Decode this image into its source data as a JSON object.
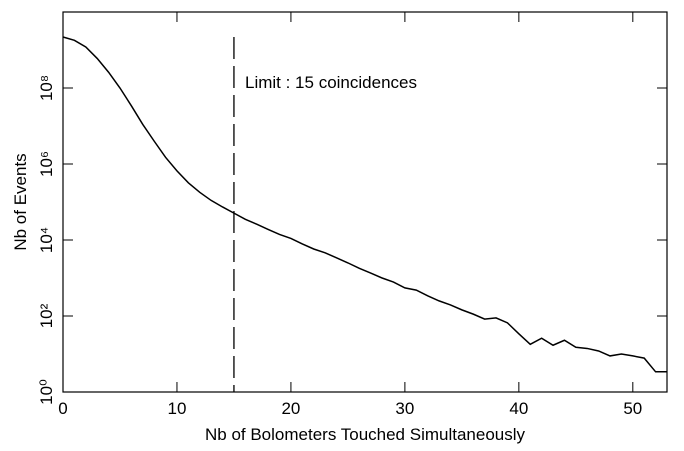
{
  "chart_data": {
    "type": "line",
    "x_label": "Nb of Bolometers Touched Simultaneously",
    "y_label": "Nb of Events",
    "annotation": "Limit : 15 coincidences",
    "limit_x": 15,
    "log_y": true,
    "xlim": [
      0,
      53
    ],
    "ylim": [
      1,
      10000000000
    ],
    "xticks": [
      0,
      10,
      20,
      30,
      40,
      50
    ],
    "yticks": [
      {
        "value": 1,
        "label": "10⁰"
      },
      {
        "value": 100,
        "label": "10²"
      },
      {
        "value": 10000,
        "label": "10⁴"
      },
      {
        "value": 1000000,
        "label": "10⁶"
      },
      {
        "value": 100000000,
        "label": "10⁸"
      }
    ],
    "series": [
      {
        "color": "#000000",
        "x": [
          0,
          1,
          2,
          3,
          4,
          5,
          6,
          7,
          8,
          9,
          10,
          11,
          12,
          13,
          14,
          15,
          16,
          17,
          18,
          19,
          20,
          21,
          22,
          23,
          24,
          25,
          26,
          27,
          28,
          29,
          30,
          31,
          32,
          33,
          34,
          35,
          36,
          37,
          38,
          39,
          40,
          41,
          42,
          43,
          44,
          45,
          46,
          47,
          48,
          49,
          50,
          51,
          52,
          53
        ],
        "values": [
          2200000000,
          1800000000,
          1200000000,
          600000000,
          260000000,
          100000000,
          34000000,
          11000000,
          4000000,
          1500000,
          660000,
          320000,
          180000,
          110000,
          74000,
          51000,
          35000,
          26000,
          19000,
          14000,
          11000,
          7900,
          5800,
          4600,
          3400,
          2500,
          1800,
          1350,
          1000,
          780,
          550,
          480,
          340,
          250,
          195,
          145,
          112,
          83,
          89,
          66,
          34,
          18,
          26,
          17,
          23,
          15,
          14,
          12,
          8.9,
          10,
          8.9,
          7.8,
          3.4,
          3.4
        ]
      }
    ]
  }
}
